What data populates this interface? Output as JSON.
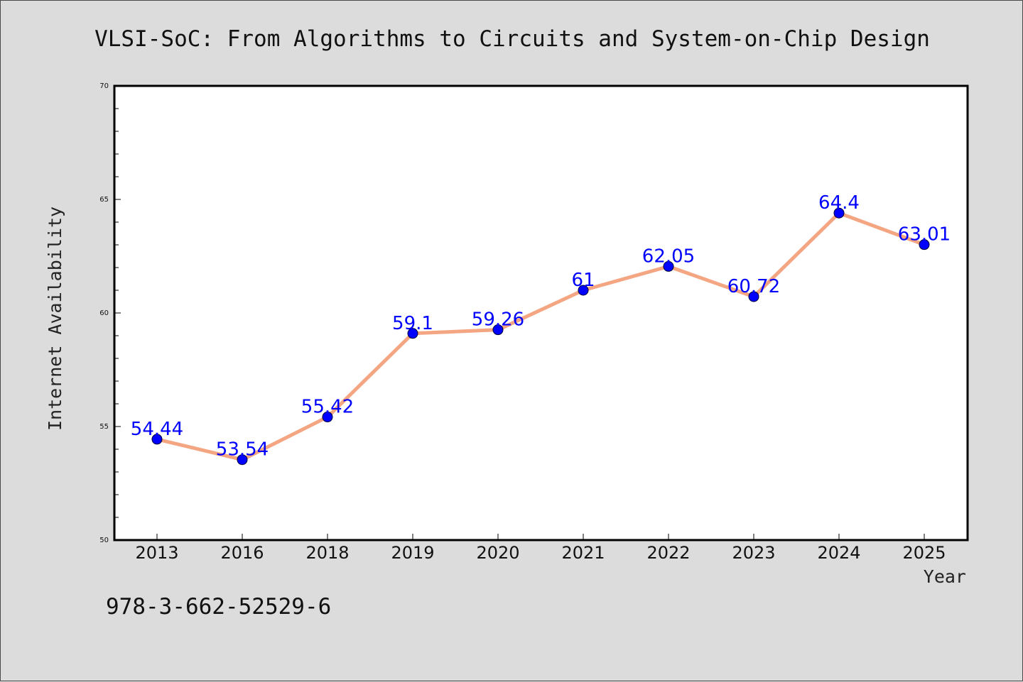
{
  "chart_data": {
    "type": "line",
    "title": "VLSI-SoC: From Algorithms to Circuits and System-on-Chip Design",
    "xlabel": "Year",
    "ylabel": "Internet Availability",
    "categories": [
      "2013",
      "2016",
      "2018",
      "2019",
      "2020",
      "2021",
      "2022",
      "2023",
      "2024",
      "2025"
    ],
    "values": [
      54.44,
      53.54,
      55.42,
      59.1,
      59.26,
      61,
      62.05,
      60.72,
      64.4,
      63.01
    ],
    "data_labels": [
      "54.44",
      "53.54",
      "55.42",
      "59.1",
      "59.26",
      "61",
      "62.05",
      "60.72",
      "64.4",
      "63.01"
    ],
    "ylim": [
      50,
      70
    ],
    "yticks": [
      50,
      55,
      60,
      65,
      70
    ],
    "ytick_labels": [
      "50",
      "55",
      "60",
      "65",
      "70"
    ],
    "grid": false,
    "line_color": "#f4a582",
    "marker_color": "#0000ff",
    "label_color": "#0000ff"
  },
  "footer": {
    "isbn": "978-3-662-52529-6"
  }
}
